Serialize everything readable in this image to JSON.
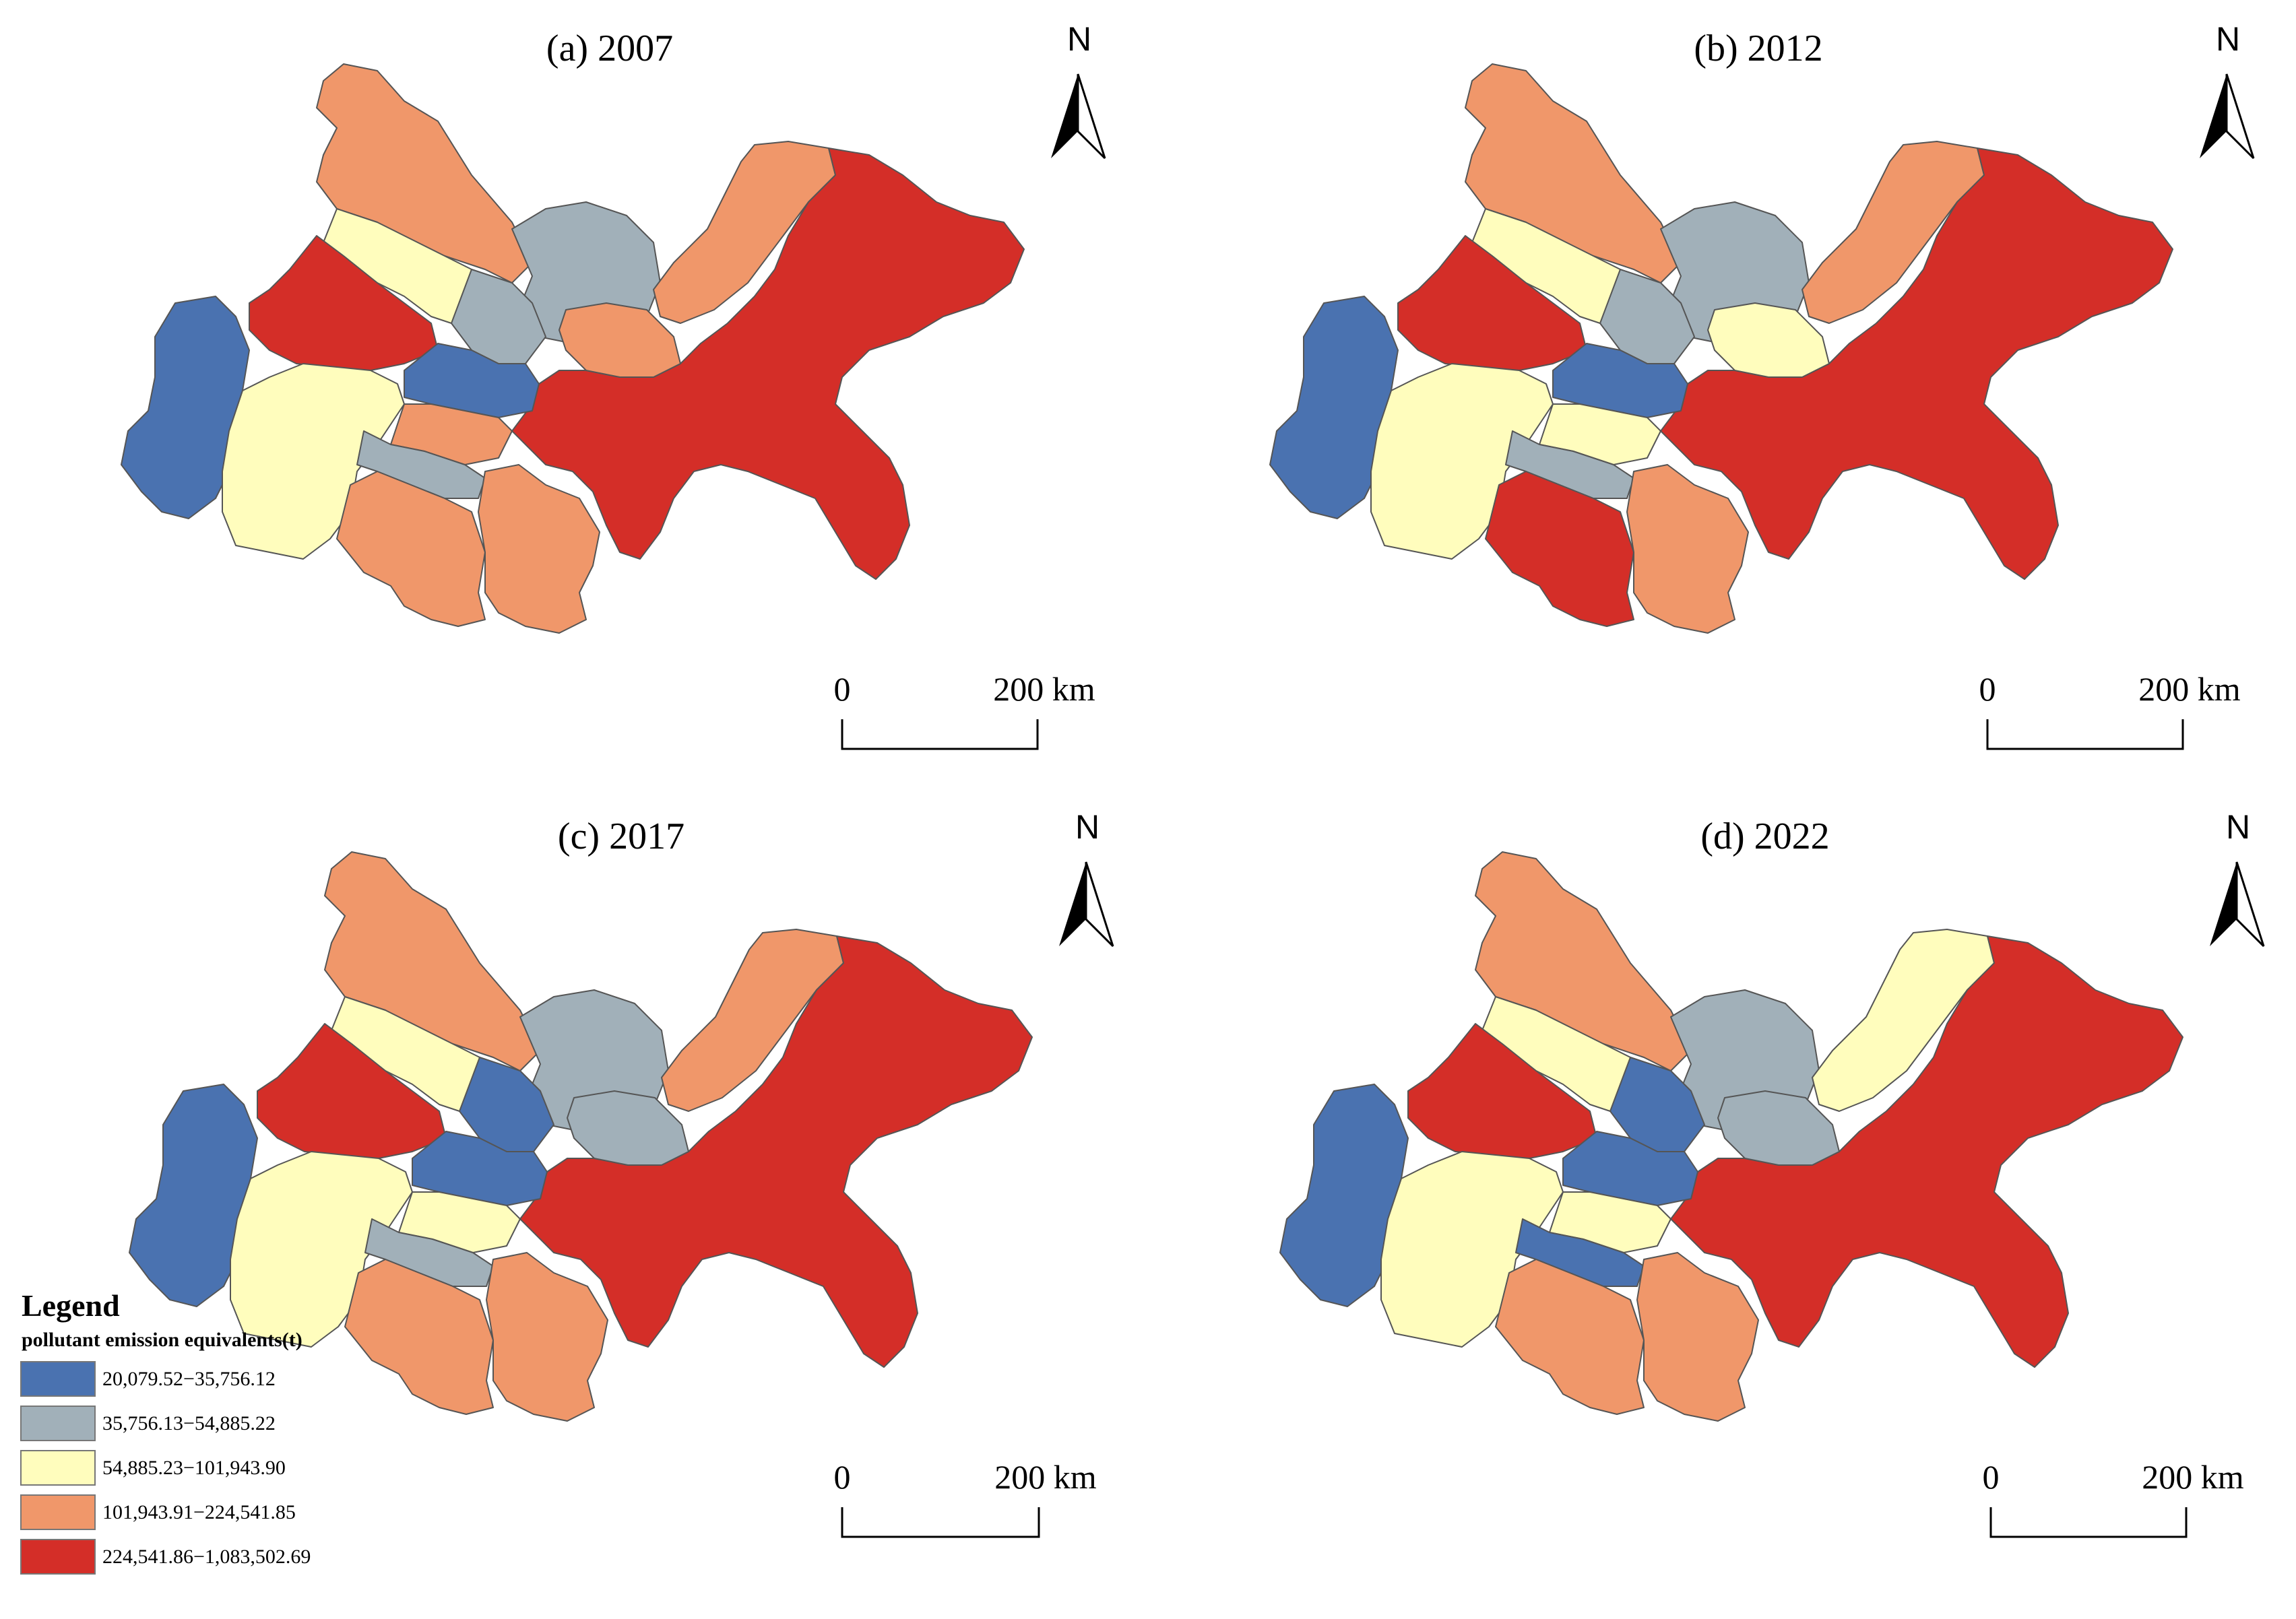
{
  "palette": {
    "c1": "#4A72B0",
    "c2": "#A1B0B9",
    "c3": "#FFFDBD",
    "c4": "#F0976A",
    "c5": "#D42E28"
  },
  "panels": [
    {
      "title": "(a) 2007",
      "north_label": "N",
      "scale_labels": {
        "start": "0",
        "end": "200 km"
      },
      "region_classes": {
        "nw_north": "c4",
        "nw_strip": "c3",
        "w_red": "c5",
        "far_west": "c1",
        "sw": "c3",
        "center_blue": "c1",
        "center_grey": "c2",
        "n_grey": "c2",
        "ne_strip": "c4",
        "e_small": "c4",
        "south_small": "c4",
        "south_grey": "c2",
        "s1": "c4",
        "s2": "c4",
        "big_east": "c5"
      }
    },
    {
      "title": "(b) 2012",
      "north_label": "N",
      "scale_labels": {
        "start": "0",
        "end": "200 km"
      },
      "region_classes": {
        "nw_north": "c4",
        "nw_strip": "c3",
        "w_red": "c5",
        "far_west": "c1",
        "sw": "c3",
        "center_blue": "c1",
        "center_grey": "c2",
        "n_grey": "c2",
        "ne_strip": "c4",
        "e_small": "c3",
        "south_small": "c3",
        "south_grey": "c2",
        "s1": "c5",
        "s2": "c4",
        "big_east": "c5"
      }
    },
    {
      "title": "(c) 2017",
      "north_label": "N",
      "scale_labels": {
        "start": "0",
        "end": "200 km"
      },
      "region_classes": {
        "nw_north": "c4",
        "nw_strip": "c3",
        "w_red": "c5",
        "far_west": "c1",
        "sw": "c3",
        "center_blue": "c1",
        "center_grey": "c1",
        "n_grey": "c2",
        "ne_strip": "c4",
        "e_small": "c2",
        "south_small": "c3",
        "south_grey": "c2",
        "s1": "c4",
        "s2": "c4",
        "big_east": "c5"
      }
    },
    {
      "title": "(d) 2022",
      "north_label": "N",
      "scale_labels": {
        "start": "0",
        "end": "200 km"
      },
      "region_classes": {
        "nw_north": "c4",
        "nw_strip": "c3",
        "w_red": "c5",
        "far_west": "c1",
        "sw": "c3",
        "center_blue": "c1",
        "center_grey": "c1",
        "n_grey": "c2",
        "ne_strip": "c3",
        "e_small": "c2",
        "south_small": "c3",
        "south_grey": "c1",
        "s1": "c4",
        "s2": "c4",
        "big_east": "c5"
      }
    }
  ],
  "legend": {
    "title": "Legend",
    "subtitle": "pollutant emission equivalents(t)",
    "items": [
      {
        "label": "20,079.52−35,756.12",
        "class": "c1"
      },
      {
        "label": "35,756.13−54,885.22",
        "class": "c2"
      },
      {
        "label": "54,885.23−101,943.90",
        "class": "c3"
      },
      {
        "label": "101,943.91−224,541.85",
        "class": "c4"
      },
      {
        "label": "224,541.86−1,083,502.69",
        "class": "c5"
      }
    ]
  }
}
